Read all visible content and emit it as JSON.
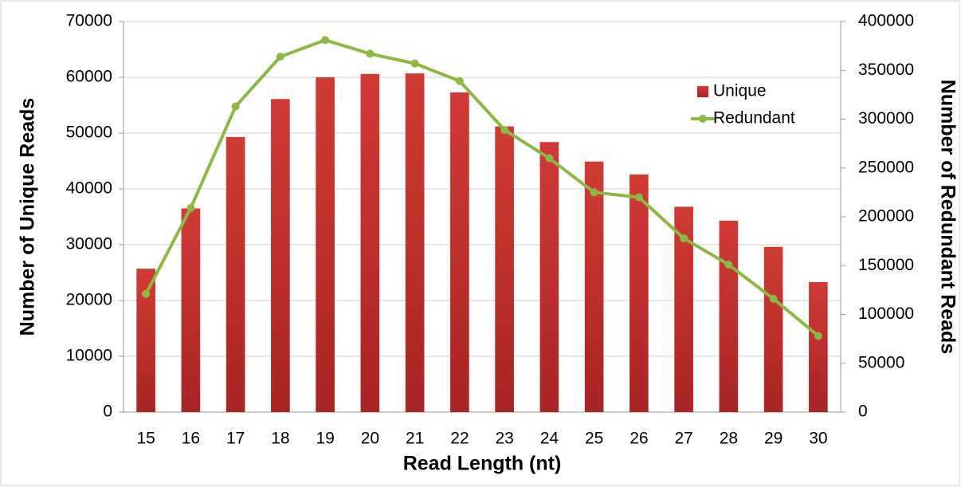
{
  "chart_data": {
    "type": "bar-line",
    "categories": [
      "15",
      "16",
      "17",
      "18",
      "19",
      "20",
      "21",
      "22",
      "23",
      "24",
      "25",
      "26",
      "27",
      "28",
      "29",
      "30"
    ],
    "series": [
      {
        "name": "Unique",
        "type": "bar",
        "color": "#c0312e",
        "values": [
          25700,
          36500,
          49300,
          56100,
          60000,
          60600,
          60700,
          57300,
          51200,
          48400,
          44900,
          42600,
          36800,
          34300,
          29600,
          23300
        ]
      },
      {
        "name": "Redundant",
        "type": "line",
        "axis": "y2",
        "color": "#8db843",
        "values": [
          121000,
          209000,
          313000,
          364000,
          381000,
          367000,
          357000,
          339000,
          289000,
          260000,
          225000,
          220000,
          178000,
          151000,
          116000,
          78000
        ]
      }
    ],
    "x_label": "Read Length (nt)",
    "y_label": "Number of Unique Reads",
    "y2_label": "Number of Redundant Reads",
    "ylim": [
      0,
      70000
    ],
    "yticks": [
      0,
      10000,
      20000,
      30000,
      40000,
      50000,
      60000,
      70000
    ],
    "y2lim": [
      0,
      400000
    ],
    "y2ticks": [
      0,
      50000,
      100000,
      150000,
      200000,
      250000,
      300000,
      350000,
      400000
    ],
    "grid": true,
    "legend_position": "upper right"
  }
}
